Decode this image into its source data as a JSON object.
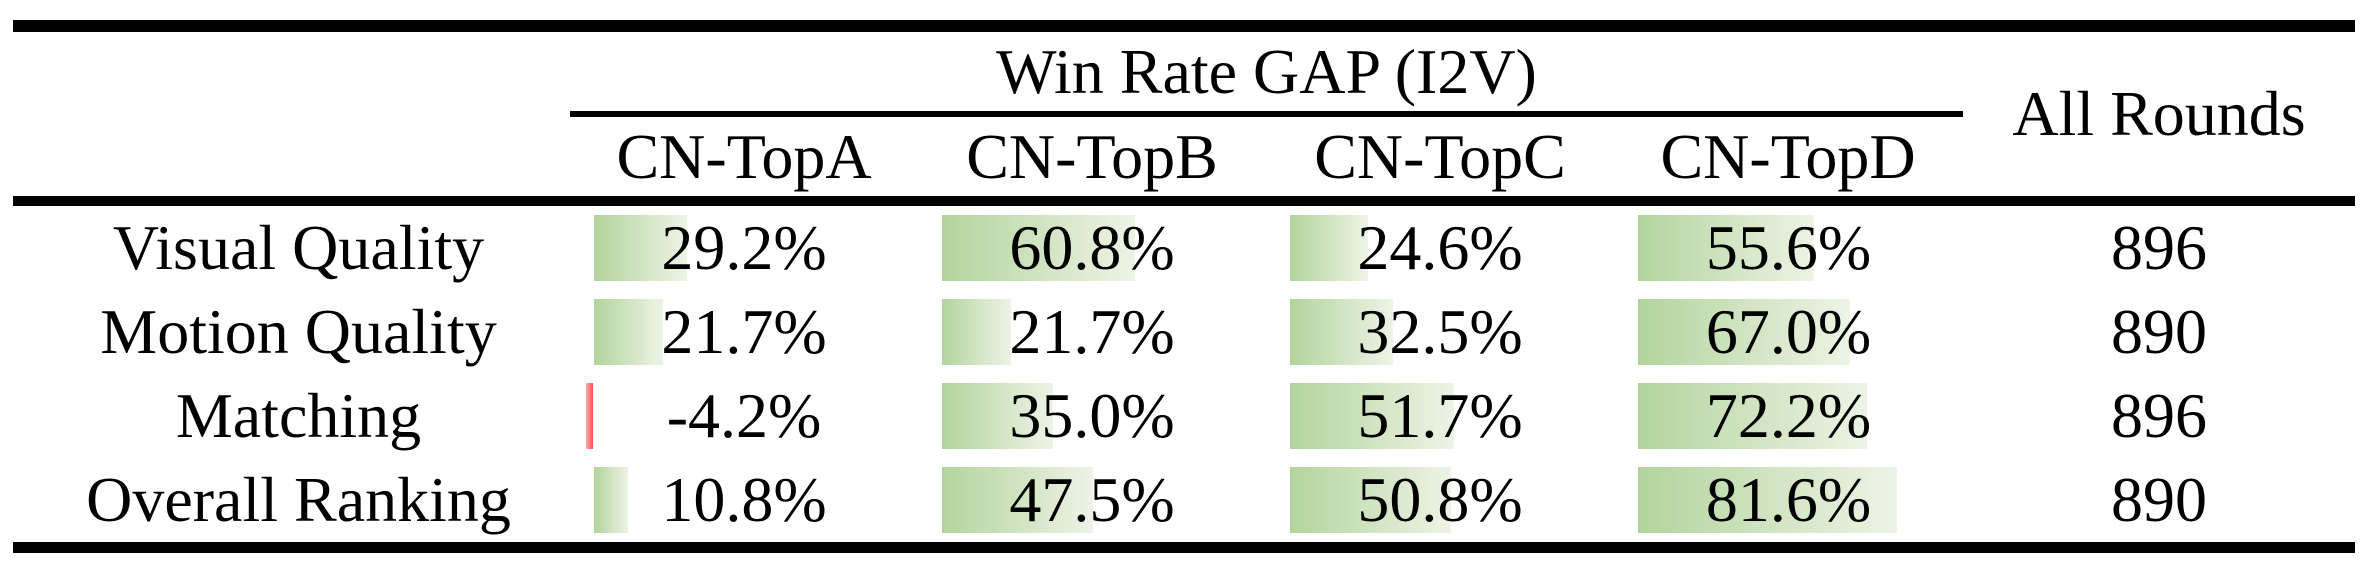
{
  "header": {
    "group_title": "Win Rate GAP (I2V)",
    "columns": [
      "CN-TopA",
      "CN-TopB",
      "CN-TopC",
      "CN-TopD"
    ],
    "all_rounds_label": "All Rounds"
  },
  "rows": [
    {
      "label": "Visual Quality",
      "cells": [
        {
          "display": "29.2%",
          "value": 29.2
        },
        {
          "display": "60.8%",
          "value": 60.8
        },
        {
          "display": "24.6%",
          "value": 24.6
        },
        {
          "display": "55.6%",
          "value": 55.6
        }
      ],
      "all_rounds": "896"
    },
    {
      "label": "Motion Quality",
      "cells": [
        {
          "display": "21.7%",
          "value": 21.7
        },
        {
          "display": "21.7%",
          "value": 21.7
        },
        {
          "display": "32.5%",
          "value": 32.5
        },
        {
          "display": "67.0%",
          "value": 67.0
        }
      ],
      "all_rounds": "890"
    },
    {
      "label": "Matching",
      "cells": [
        {
          "display": "-4.2%",
          "value": -4.2
        },
        {
          "display": "35.0%",
          "value": 35.0
        },
        {
          "display": "51.7%",
          "value": 51.7
        },
        {
          "display": "72.2%",
          "value": 72.2
        }
      ],
      "all_rounds": "896"
    },
    {
      "label": "Overall Ranking",
      "cells": [
        {
          "display": "10.8%",
          "value": 10.8
        },
        {
          "display": "47.5%",
          "value": 47.5
        },
        {
          "display": "50.8%",
          "value": 50.8
        },
        {
          "display": "81.6%",
          "value": 81.6
        }
      ],
      "all_rounds": "890"
    }
  ],
  "colors": {
    "positive_bar_start": "#b2d49c",
    "positive_bar_end": "#eef3e6",
    "negative_bar_start": "#ffaaaa",
    "negative_bar_end": "#ff5050"
  },
  "chart_data": {
    "type": "table",
    "title": "Win Rate GAP (I2V)",
    "columns": [
      "CN-TopA",
      "CN-TopB",
      "CN-TopC",
      "CN-TopD",
      "All Rounds"
    ],
    "row_labels": [
      "Visual Quality",
      "Motion Quality",
      "Matching",
      "Overall Ranking"
    ],
    "win_rate_gap_pct": [
      [
        29.2,
        60.8,
        24.6,
        55.6
      ],
      [
        21.7,
        21.7,
        32.5,
        67.0
      ],
      [
        -4.2,
        35.0,
        51.7,
        72.2
      ],
      [
        10.8,
        47.5,
        50.8,
        81.6
      ]
    ],
    "all_rounds": [
      896,
      890,
      896,
      890
    ],
    "bar_style": "in-cell gradient data bars, green positive, red negative"
  }
}
